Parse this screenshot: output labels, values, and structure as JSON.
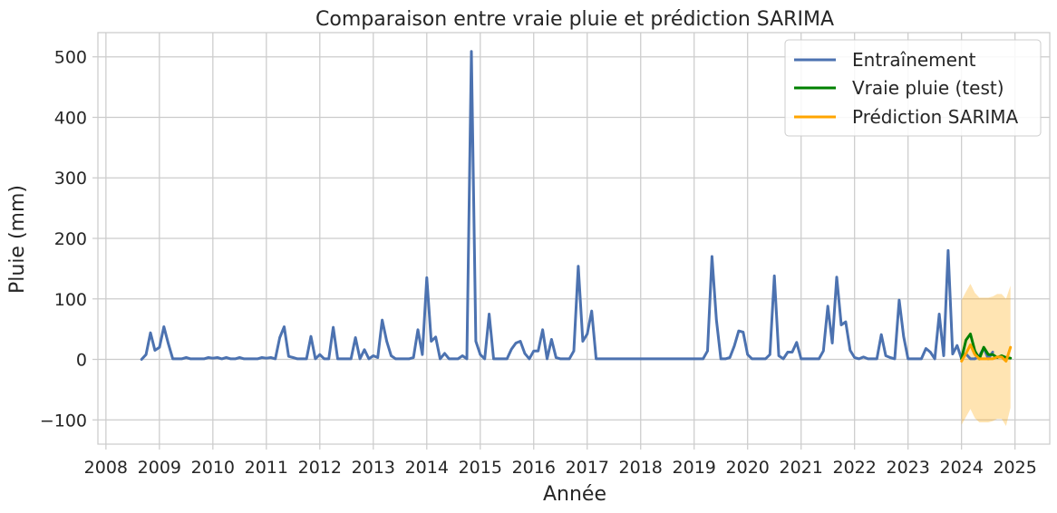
{
  "chart_data": {
    "type": "line",
    "title": "Comparaison entre vraie pluie et prédiction SARIMA",
    "xlabel": "Année",
    "ylabel": "Pluie (mm)",
    "xlim": [
      2007.85,
      2025.65
    ],
    "ylim": [
      -140,
      540
    ],
    "x_ticks": [
      2008,
      2009,
      2010,
      2011,
      2012,
      2013,
      2014,
      2015,
      2016,
      2017,
      2018,
      2019,
      2020,
      2021,
      2022,
      2023,
      2024,
      2025
    ],
    "y_ticks": [
      -100,
      0,
      100,
      200,
      300,
      400,
      500
    ],
    "y_tick_labels": [
      "−100",
      "0",
      "100",
      "200",
      "300",
      "400",
      "500"
    ],
    "grid": true,
    "legend_position": "top-right",
    "colors": {
      "train": "#4c72b0",
      "test": "#008000",
      "forecast": "#ffa500",
      "ci": "#ffa500"
    },
    "series": [
      {
        "name": "Entraînement",
        "key": "train",
        "start": 2008.667,
        "step": 0.0833333,
        "values": [
          0,
          8,
          44,
          15,
          20,
          54,
          26,
          1,
          1,
          1,
          3,
          1,
          1,
          1,
          1,
          3,
          2,
          3,
          1,
          3,
          1,
          1,
          3,
          1,
          1,
          1,
          1,
          3,
          2,
          3,
          1,
          36,
          54,
          5,
          3,
          1,
          1,
          1,
          38,
          1,
          8,
          1,
          1,
          53,
          1,
          1,
          1,
          1,
          36,
          1,
          16,
          1,
          6,
          3,
          65,
          30,
          6,
          1,
          1,
          1,
          1,
          3,
          49,
          8,
          135,
          30,
          37,
          1,
          10,
          1,
          1,
          1,
          6,
          1,
          509,
          30,
          8,
          1,
          75,
          1,
          1,
          1,
          1,
          17,
          27,
          30,
          10,
          1,
          14,
          14,
          49,
          1,
          33,
          3,
          1,
          1,
          1,
          14,
          154,
          30,
          42,
          80,
          1,
          1,
          1,
          1,
          1,
          1,
          1,
          1,
          1,
          1,
          1,
          1,
          1,
          1,
          1,
          1,
          1,
          1,
          1,
          1,
          1,
          1,
          1,
          1,
          1,
          14,
          170,
          65,
          1,
          1,
          3,
          22,
          47,
          45,
          8,
          1,
          1,
          1,
          1,
          8,
          138,
          6,
          1,
          12,
          12,
          28,
          1,
          1,
          1,
          1,
          1,
          14,
          88,
          27,
          136,
          57,
          62,
          15,
          3,
          1,
          4,
          1,
          1,
          1,
          41,
          6,
          3,
          1,
          98,
          38,
          1,
          1,
          1,
          1,
          18,
          12,
          1,
          75,
          6,
          180,
          9,
          23,
          1,
          9,
          1,
          1,
          6,
          19,
          1,
          12
        ]
      },
      {
        "name": "Vraie pluie (test)",
        "key": "test",
        "start": 2024.0,
        "step": 0.0833333,
        "values": [
          1,
          32,
          42,
          14,
          1,
          20,
          8,
          8,
          3,
          6,
          3,
          2
        ]
      },
      {
        "name": "Prédiction SARIMA",
        "key": "forecast",
        "start": 2024.0,
        "step": 0.0833333,
        "values": [
          -3,
          10,
          24,
          8,
          1,
          1,
          1,
          1,
          4,
          4,
          -3,
          20
        ],
        "ci_upper": [
          98,
          112,
          125,
          110,
          102,
          102,
          102,
          104,
          108,
          108,
          100,
          122
        ],
        "ci_lower": [
          -108,
          -95,
          -82,
          -97,
          -104,
          -104,
          -104,
          -102,
          -98,
          -98,
          -110,
          -80
        ]
      }
    ]
  }
}
